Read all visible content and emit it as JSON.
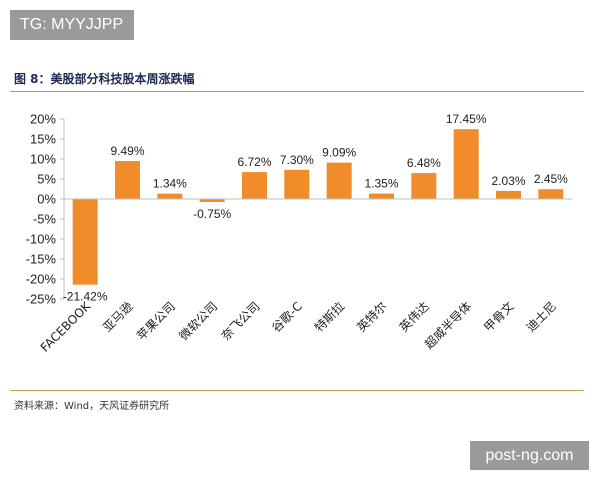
{
  "badge": {
    "text": "TG: MYYJJPP"
  },
  "figure_title": "图 8：美股部分科技股本周涨跌幅",
  "source_note": "资料来源：Wind，天风证券研究所",
  "watermark": "post-ng.com",
  "chart_data": {
    "type": "bar",
    "title": "",
    "categories": [
      "FACEBOOK",
      "亚马逊",
      "苹果公司",
      "微软公司",
      "奈飞公司",
      "谷歌-C",
      "特斯拉",
      "英特尔",
      "英伟达",
      "超威半导体",
      "甲骨文",
      "迪士尼"
    ],
    "values": [
      -21.42,
      9.49,
      1.34,
      -0.75,
      6.72,
      7.3,
      9.09,
      1.35,
      6.48,
      17.45,
      2.03,
      2.45
    ],
    "data_labels": [
      "-21.42%",
      "9.49%",
      "1.34%",
      "-0.75%",
      "6.72%",
      "7.30%",
      "9.09%",
      "1.35%",
      "6.48%",
      "17.45%",
      "2.03%",
      "2.45%"
    ],
    "ylim": [
      -25,
      20
    ],
    "yticks": [
      20,
      15,
      10,
      5,
      0,
      -5,
      -10,
      -15,
      -20,
      -25
    ],
    "ytick_labels": [
      "20%",
      "15%",
      "10%",
      "5%",
      "0%",
      "-5%",
      "-10%",
      "-15%",
      "-20%",
      "-25%"
    ],
    "bar_color": "#f08c2a",
    "xlabel": "",
    "ylabel": "",
    "grid": false,
    "legend": "none"
  }
}
